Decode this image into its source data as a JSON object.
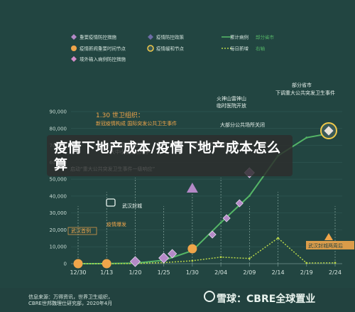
{
  "legend": {
    "items": [
      {
        "label": "重要疫情防控措施",
        "color": "#b489c7",
        "shape": "diamond"
      },
      {
        "label": "疫情防控政策",
        "color": "#6d6da5",
        "shape": "diamond-dark"
      },
      {
        "label": "累计病例",
        "color": "#55b667",
        "shape": "line"
      },
      {
        "label": "部分省市",
        "color": "#55b667",
        "shape": "text-badge"
      },
      {
        "label": "疫情新闻重要时间节点",
        "color": "#f0a54a",
        "shape": "circle"
      },
      {
        "label": "疫情缓和节点",
        "color": "#f0c94a",
        "shape": "ring"
      },
      {
        "label": "每日新增",
        "color": "#b8d64a",
        "shape": "dotted"
      },
      {
        "label": "右轴",
        "color": "#55b667",
        "shape": "text-badge"
      },
      {
        "label": "境外输入病例防控措施",
        "color": "#d38cc8",
        "shape": "diamond-small"
      }
    ],
    "cumulative_suffix": "（右轴）",
    "daily_suffix": "（右轴）"
  },
  "overlay_title": "疫情下地产成本/疫情下地产成本怎么算",
  "footer": {
    "source_line1": "信息来源：万得资讯，世界卫生组织，",
    "source_line2": "CBRE世邦魏理仕研究部，2020年4月",
    "brand": "雪球：CBRE全球置业"
  },
  "annotations": [
    {
      "text": "1.30  世卫组织：",
      "color": "#f0a54a"
    },
    {
      "text": "新冠疫情构成 国际突发公共卫生事件",
      "color": "#f0a54a"
    },
    {
      "text": "火神山雷神山",
      "color": "#e9f3ee"
    },
    {
      "text": "临时医院开放",
      "color": "#e9f3ee"
    },
    {
      "text": "部分省市",
      "color": "#e9f3ee"
    },
    {
      "text": "下调重大公共突发卫生事件",
      "color": "#e9f3ee"
    },
    {
      "text": "大部分公共场所关闭",
      "color": "#e9f3ee"
    },
    {
      "text": "春节假期延长至",
      "color": "#e9f3ee"
    },
    {
      "text": "大中小学推迟开学",
      "color": "#e9f3ee"
    },
    {
      "text": "实施城际交通管制",
      "color": "#e9f3ee"
    },
    {
      "text": "启动“重大公共突发卫生事件一级响应”",
      "color": "#e9f3ee"
    },
    {
      "text": "武汉封城",
      "color": "#e9f3ee"
    },
    {
      "text": "疫情爆发",
      "color": "#f0a54a"
    },
    {
      "text": "武汉首例",
      "color": "#f0a54a"
    },
    {
      "text": "武汉封城两周后",
      "color": "#e9f3ee"
    }
  ],
  "chart_data": {
    "type": "line",
    "x": [
      "12/30",
      "1/13",
      "1/20",
      "1/25",
      "1/30",
      "2/04",
      "2/09",
      "2/14",
      "2/19",
      "2/24"
    ],
    "ylim": [
      0,
      90000
    ],
    "yticks": [
      "0",
      "10,000",
      "20,000",
      "30,000",
      "40,000",
      "50,000",
      "60,000",
      "70,000",
      "80,000",
      "90,000"
    ],
    "series": [
      {
        "name": "累计病例",
        "color": "#55b667",
        "values": [
          0,
          41,
          291,
          1975,
          7711,
          24324,
          40171,
          63851,
          74576,
          77658
        ]
      },
      {
        "name": "每日新增",
        "color": "#b8d64a",
        "values": [
          0,
          0,
          77,
          688,
          1737,
          3887,
          3062,
          15152,
          394,
          508
        ]
      }
    ],
    "grid": true
  }
}
